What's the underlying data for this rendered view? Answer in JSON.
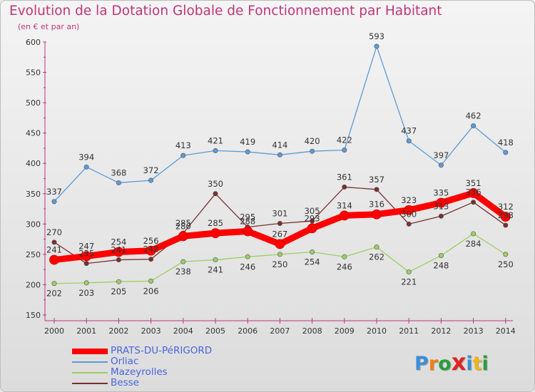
{
  "header": {
    "title": "Evolution de la Dotation Globale de Fonctionnement par Habitant",
    "subtitle": "(en € et par an)"
  },
  "logo": {
    "text": "Proxiti",
    "colors": [
      "#3a8fd6",
      "#f07d1a",
      "#2a9d3a",
      "#e02424",
      "#3a8fd6",
      "#f0b41a",
      "#2a9d3a"
    ]
  },
  "chart_data": {
    "type": "line",
    "title": "Evolution de la Dotation Globale de Fonctionnement par Habitant",
    "subtitle": "(en € et par an)",
    "x": [
      "2000",
      "2001",
      "2002",
      "2003",
      "2004",
      "2005",
      "2006",
      "2007",
      "2008",
      "2009",
      "2010",
      "2011",
      "2012",
      "2013",
      "2014"
    ],
    "ylim": [
      150,
      600
    ],
    "yticks": [
      150,
      200,
      250,
      300,
      350,
      400,
      450,
      500,
      550,
      600
    ],
    "grid": false,
    "legend_position": "bottom-left",
    "series": [
      {
        "name": "PRATS-DU-PéRIGORD",
        "color": "#ff0000",
        "values": [
          241,
          247,
          254,
          256,
          280,
          285,
          288,
          267,
          293,
          314,
          316,
          323,
          335,
          351,
          312
        ]
      },
      {
        "name": "Orliac",
        "color": "#5b9bd5",
        "values": [
          337,
          394,
          368,
          372,
          413,
          421,
          419,
          414,
          420,
          422,
          593,
          437,
          397,
          462,
          418
        ]
      },
      {
        "name": "Mazeyrolles",
        "color": "#9ccf64",
        "values": [
          202,
          203,
          205,
          206,
          238,
          241,
          246,
          250,
          254,
          246,
          262,
          221,
          248,
          284,
          250
        ]
      },
      {
        "name": "Besse",
        "color": "#7a2f2f",
        "values": [
          270,
          235,
          241,
          242,
          285,
          350,
          295,
          301,
          305,
          361,
          357,
          300,
          313,
          336,
          298
        ]
      }
    ]
  }
}
